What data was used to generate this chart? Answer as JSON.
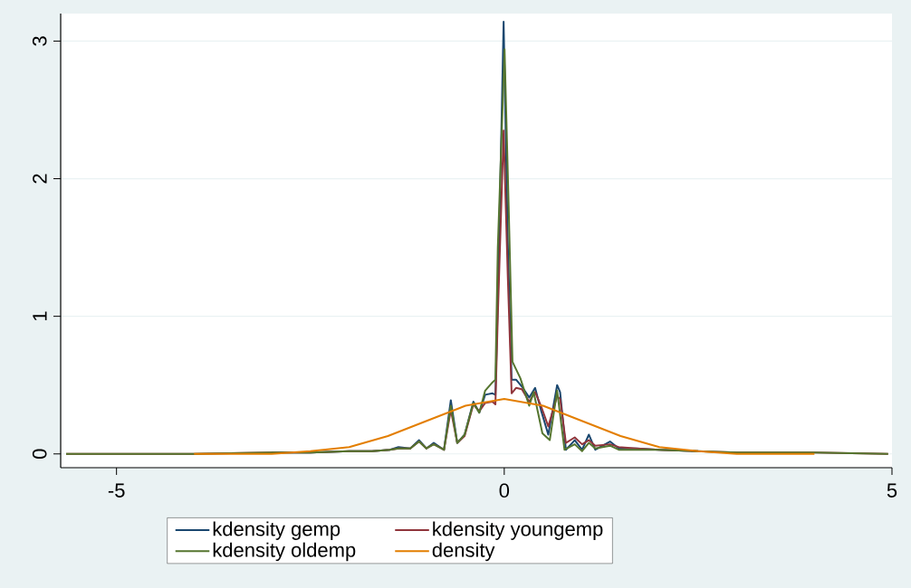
{
  "chart_data": {
    "type": "line",
    "xlim": [
      -5.72,
      5
    ],
    "ylim": [
      -0.1,
      3.2
    ],
    "xticks": [
      -5,
      0,
      5
    ],
    "yticks": [
      0,
      1,
      2,
      3
    ],
    "grid": "y",
    "legend": "bottom",
    "series": [
      {
        "name": "kdensity gemp",
        "color": "#1a476f",
        "x": [
          -3,
          -2.5,
          -2,
          -1.705,
          -1.477,
          -1.364,
          -1.212,
          -1.098,
          -1.004,
          -0.909,
          -0.777,
          -0.689,
          -0.606,
          -0.511,
          -0.398,
          -0.322,
          -0.246,
          -0.152,
          -0.114,
          -0.083,
          -0.008,
          0.045,
          0.095,
          0.152,
          0.227,
          0.322,
          0.398,
          0.473,
          0.568,
          0.682,
          0.72,
          0.795,
          0.909,
          1.004,
          1.091,
          1.174,
          1.364,
          1.477,
          1.705,
          2,
          2.5
        ],
        "values": [
          0.01,
          0.01,
          0.02,
          0.02,
          0.03,
          0.05,
          0.04,
          0.1,
          0.04,
          0.08,
          0.03,
          0.39,
          0.08,
          0.14,
          0.38,
          0.3,
          0.43,
          0.44,
          0.43,
          1.11,
          3.14,
          1.55,
          0.54,
          0.54,
          0.49,
          0.41,
          0.48,
          0.32,
          0.14,
          0.5,
          0.45,
          0.03,
          0.1,
          0.03,
          0.14,
          0.03,
          0.09,
          0.04,
          0.04,
          0.03,
          0.02
        ]
      },
      {
        "name": "kdensity youngemp",
        "color": "#90353b",
        "x": [
          -5.65,
          -4,
          -3,
          -2.5,
          -2,
          -1.705,
          -1.477,
          -1.364,
          -1.212,
          -1.098,
          -1.004,
          -0.909,
          -0.777,
          -0.689,
          -0.606,
          -0.511,
          -0.398,
          -0.322,
          -0.246,
          -0.152,
          -0.114,
          -0.083,
          -0.008,
          0.045,
          0.095,
          0.152,
          0.227,
          0.322,
          0.398,
          0.473,
          0.568,
          0.682,
          0.72,
          0.795,
          0.909,
          1.004,
          1.091,
          1.174,
          1.364,
          1.477,
          1.705,
          2,
          2.5,
          3,
          4,
          4.95
        ],
        "values": [
          0,
          0,
          0.01,
          0.01,
          0.02,
          0.02,
          0.03,
          0.04,
          0.04,
          0.09,
          0.04,
          0.07,
          0.03,
          0.32,
          0.08,
          0.13,
          0.36,
          0.31,
          0.37,
          0.38,
          0.36,
          1.0,
          2.35,
          1.3,
          0.44,
          0.48,
          0.47,
          0.38,
          0.45,
          0.35,
          0.2,
          0.42,
          0.4,
          0.08,
          0.12,
          0.07,
          0.1,
          0.06,
          0.07,
          0.05,
          0.04,
          0.03,
          0.02,
          0.01,
          0.01,
          0
        ]
      },
      {
        "name": "kdensity oldemp",
        "color": "#55752f",
        "x": [
          -5.65,
          -4,
          -3,
          -2.5,
          -2,
          -1.705,
          -1.477,
          -1.364,
          -1.212,
          -1.098,
          -1.004,
          -0.909,
          -0.777,
          -0.689,
          -0.606,
          -0.511,
          -0.398,
          -0.322,
          -0.246,
          -0.152,
          -0.114,
          -0.083,
          0.004,
          0.057,
          0.106,
          0.208,
          0.322,
          0.379,
          0.492,
          0.587,
          0.682,
          0.777,
          0.909,
          1.004,
          1.091,
          1.174,
          1.364,
          1.477,
          1.705,
          2,
          2.5,
          3,
          4,
          4.95
        ],
        "values": [
          0,
          0,
          0.01,
          0.01,
          0.02,
          0.02,
          0.03,
          0.04,
          0.04,
          0.09,
          0.04,
          0.07,
          0.03,
          0.35,
          0.08,
          0.14,
          0.37,
          0.3,
          0.46,
          0.52,
          0.54,
          1.5,
          2.94,
          1.8,
          0.67,
          0.55,
          0.35,
          0.45,
          0.15,
          0.1,
          0.46,
          0.03,
          0.07,
          0.02,
          0.08,
          0.04,
          0.06,
          0.03,
          0.03,
          0.03,
          0.02,
          0.01,
          0.01,
          0
        ]
      },
      {
        "name": "density",
        "color": "#e37e00",
        "x": [
          -4,
          -3.5,
          -3,
          -2.5,
          -2,
          -1.5,
          -1,
          -0.5,
          0,
          0.5,
          1,
          1.5,
          2,
          2.5,
          3,
          3.5,
          4
        ],
        "values": [
          0,
          0,
          0,
          0.02,
          0.05,
          0.13,
          0.24,
          0.35,
          0.4,
          0.35,
          0.24,
          0.13,
          0.05,
          0.02,
          0,
          0,
          0
        ]
      }
    ]
  }
}
